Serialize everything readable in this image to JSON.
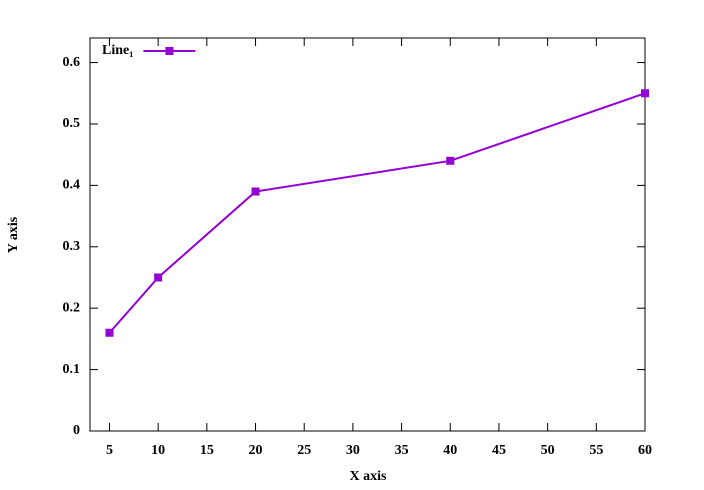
{
  "chart_data": {
    "type": "line",
    "x_label": "X axis",
    "y_label": "Y axis",
    "x": [
      5,
      10,
      20,
      40,
      60
    ],
    "series": [
      {
        "name": "Line₁",
        "color": "#9400d3",
        "values": [
          0.16,
          0.25,
          0.39,
          0.44,
          0.55
        ]
      }
    ],
    "xlim": [
      3,
      60
    ],
    "xticks": [
      5,
      10,
      15,
      20,
      25,
      30,
      35,
      40,
      45,
      50,
      55,
      60
    ],
    "ylim": [
      0,
      0.64
    ],
    "yticks": [
      0,
      0.1,
      0.2,
      0.3,
      0.4,
      0.5,
      0.6
    ],
    "legend": "top-left",
    "grid": false
  }
}
